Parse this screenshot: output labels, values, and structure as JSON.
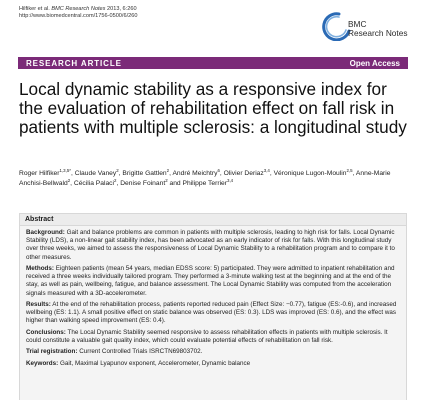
{
  "citation": {
    "authors": "Hilfiker et al.",
    "journal": "BMC Research Notes",
    "issue": "2013, 6:260",
    "url": "http://www.biomedcentral.com/1756-0500/6/260"
  },
  "logo": {
    "line1": "BMC",
    "line2": "Research Notes"
  },
  "banner": {
    "left": "RESEARCH ARTICLE",
    "right": "Open Access"
  },
  "title": "Local dynamic stability as a responsive index for the evaluation of rehabilitation effect on fall risk in patients with multiple sclerosis: a longitudinal study",
  "authors": [
    {
      "name": "Roger Hilfiker",
      "aff": "1,3,5*",
      "sep": ", "
    },
    {
      "name": "Claude Vaney",
      "aff": "2",
      "sep": ", "
    },
    {
      "name": "Brigitte Gattlen",
      "aff": "2",
      "sep": ", "
    },
    {
      "name": "André Meichtry",
      "aff": "6",
      "sep": ", "
    },
    {
      "name": "Olivier Deriaz",
      "aff": "3,4",
      "sep": ", "
    },
    {
      "name": "Véronique Lugon-Moulin",
      "aff": "2,5",
      "sep": ", "
    },
    {
      "name": "Anne-Marie Anchisi-Bellwald",
      "aff": "2",
      "sep": ", "
    },
    {
      "name": "Cécilia Palaci",
      "aff": "2",
      "sep": ", "
    },
    {
      "name": "Denise Foinant",
      "aff": "2",
      "sep": " and "
    },
    {
      "name": "Philippe Terrier",
      "aff": "3,4",
      "sep": ""
    }
  ],
  "abstract": {
    "heading": "Abstract",
    "sections": [
      {
        "label": "Background:",
        "text": "Gait and balance problems are common in patients with multiple sclerosis, leading to high risk for falls. Local Dynamic Stability (LDS), a non-linear gait stability index, has been advocated as an early indicator of risk for falls. With this longitudinal study over three weeks, we aimed to assess the responsiveness of Local Dynamic Stability to a rehabilitation program and to compare it to other measures."
      },
      {
        "label": "Methods:",
        "text": "Eighteen patients (mean 54 years, median EDSS score: 5) participated. They were admitted to inpatient rehabilitation and received a three weeks individually tailored program. They performed a 3-minute walking test at the beginning and at the end of the stay, as well as pain, wellbeing, fatigue, and balance assessment. The Local Dynamic Stability was computed from the acceleration signals measured with a 3D-accelerometer."
      },
      {
        "label": "Results:",
        "text": "At the end of the rehabilitation process, patients reported reduced pain (Effect Size: −0.77), fatigue (ES:-0.6), and increased wellbeing (ES: 1.1). A small positive effect on static balance was observed (ES: 0.3). LDS was improved (ES: 0.6), and the effect was higher than walking speed improvement (ES: 0.4)."
      },
      {
        "label": "Conclusions:",
        "text": "The Local Dynamic Stability seemed responsive to assess rehabilitation effects in patients with multiple sclerosis. It could constitute a valuable gait quality index, which could evaluate potential effects of rehabilitation on fall risk."
      },
      {
        "label": "Trial registration:",
        "text": "Current Controlled Trials ISRCTN69803702."
      },
      {
        "label": "Keywords:",
        "text": "Gait, Maximal Lyapunov exponent, Accelerometer, Dynamic balance"
      }
    ]
  },
  "colors": {
    "banner": "#7b2a78",
    "logo_blue": "#2a6ab5"
  }
}
